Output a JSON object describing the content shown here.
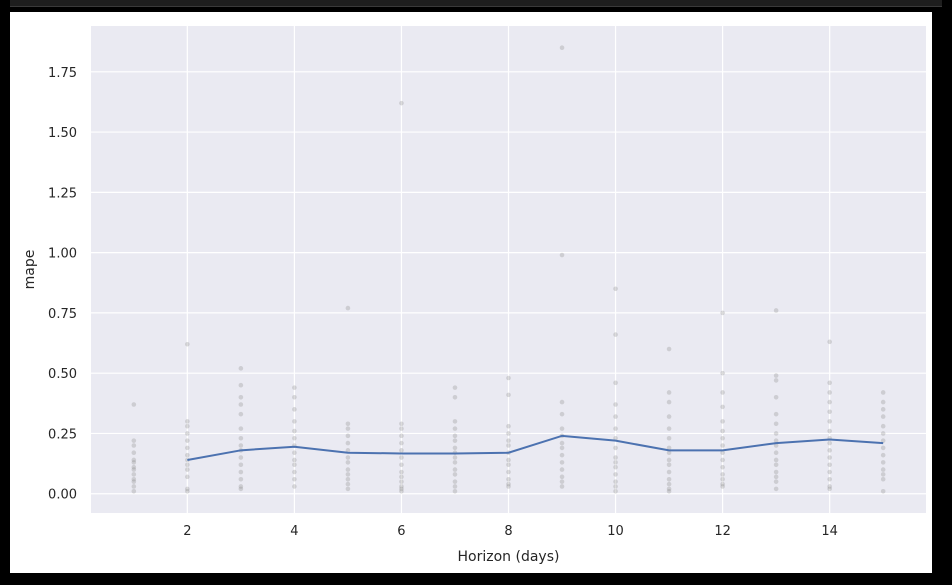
{
  "chart_data": {
    "type": "scatter",
    "title": "",
    "xlabel": "Horizon (days)",
    "ylabel": "mape",
    "xlim": [
      0.2,
      15.8
    ],
    "ylim": [
      -0.08,
      1.94
    ],
    "x_ticks": [
      2,
      4,
      6,
      8,
      10,
      12,
      14
    ],
    "y_ticks": [
      0.0,
      0.25,
      0.5,
      0.75,
      1.0,
      1.25,
      1.5,
      1.75
    ],
    "y_tick_labels": [
      "0.00",
      "0.25",
      "0.50",
      "0.75",
      "1.00",
      "1.25",
      "1.50",
      "1.75"
    ],
    "grid": true,
    "background_color": "#eaeaf2",
    "grid_color": "#ffffff",
    "line_color": "#4c72b0",
    "point_color": "#808080",
    "series": [
      {
        "type": "scatter",
        "points": [
          [
            1,
            0.37
          ],
          [
            1,
            0.22
          ],
          [
            1,
            0.2
          ],
          [
            1,
            0.17
          ],
          [
            1,
            0.14
          ],
          [
            1,
            0.13
          ],
          [
            1,
            0.11
          ],
          [
            1,
            0.1
          ],
          [
            1,
            0.08
          ],
          [
            1,
            0.06
          ],
          [
            1,
            0.05
          ],
          [
            1,
            0.03
          ],
          [
            1,
            0.01
          ],
          [
            2,
            0.62
          ],
          [
            2,
            0.3
          ],
          [
            2,
            0.28
          ],
          [
            2,
            0.25
          ],
          [
            2,
            0.22
          ],
          [
            2,
            0.19
          ],
          [
            2,
            0.16
          ],
          [
            2,
            0.14
          ],
          [
            2,
            0.12
          ],
          [
            2,
            0.1
          ],
          [
            2,
            0.07
          ],
          [
            2,
            0.02
          ],
          [
            2,
            0.01
          ],
          [
            3,
            0.52
          ],
          [
            3,
            0.45
          ],
          [
            3,
            0.4
          ],
          [
            3,
            0.37
          ],
          [
            3,
            0.33
          ],
          [
            3,
            0.27
          ],
          [
            3,
            0.23
          ],
          [
            3,
            0.2
          ],
          [
            3,
            0.18
          ],
          [
            3,
            0.15
          ],
          [
            3,
            0.12
          ],
          [
            3,
            0.09
          ],
          [
            3,
            0.06
          ],
          [
            3,
            0.03
          ],
          [
            3,
            0.02
          ],
          [
            4,
            0.44
          ],
          [
            4,
            0.4
          ],
          [
            4,
            0.35
          ],
          [
            4,
            0.3
          ],
          [
            4,
            0.26
          ],
          [
            4,
            0.23
          ],
          [
            4,
            0.2
          ],
          [
            4,
            0.17
          ],
          [
            4,
            0.14
          ],
          [
            4,
            0.12
          ],
          [
            4,
            0.09
          ],
          [
            4,
            0.06
          ],
          [
            4,
            0.03
          ],
          [
            5,
            0.77
          ],
          [
            5,
            0.29
          ],
          [
            5,
            0.27
          ],
          [
            5,
            0.24
          ],
          [
            5,
            0.21
          ],
          [
            5,
            0.18
          ],
          [
            5,
            0.15
          ],
          [
            5,
            0.13
          ],
          [
            5,
            0.1
          ],
          [
            5,
            0.08
          ],
          [
            5,
            0.06
          ],
          [
            5,
            0.04
          ],
          [
            5,
            0.02
          ],
          [
            6,
            1.62
          ],
          [
            6,
            0.29
          ],
          [
            6,
            0.27
          ],
          [
            6,
            0.24
          ],
          [
            6,
            0.21
          ],
          [
            6,
            0.18
          ],
          [
            6,
            0.15
          ],
          [
            6,
            0.12
          ],
          [
            6,
            0.09
          ],
          [
            6,
            0.07
          ],
          [
            6,
            0.05
          ],
          [
            6,
            0.03
          ],
          [
            6,
            0.02
          ],
          [
            6,
            0.01
          ],
          [
            7,
            0.44
          ],
          [
            7,
            0.4
          ],
          [
            7,
            0.3
          ],
          [
            7,
            0.27
          ],
          [
            7,
            0.24
          ],
          [
            7,
            0.22
          ],
          [
            7,
            0.19
          ],
          [
            7,
            0.17
          ],
          [
            7,
            0.15
          ],
          [
            7,
            0.13
          ],
          [
            7,
            0.1
          ],
          [
            7,
            0.08
          ],
          [
            7,
            0.05
          ],
          [
            7,
            0.03
          ],
          [
            7,
            0.01
          ],
          [
            8,
            0.48
          ],
          [
            8,
            0.41
          ],
          [
            8,
            0.28
          ],
          [
            8,
            0.25
          ],
          [
            8,
            0.22
          ],
          [
            8,
            0.2
          ],
          [
            8,
            0.17
          ],
          [
            8,
            0.14
          ],
          [
            8,
            0.12
          ],
          [
            8,
            0.09
          ],
          [
            8,
            0.06
          ],
          [
            8,
            0.04
          ],
          [
            8,
            0.03
          ],
          [
            9,
            1.85
          ],
          [
            9,
            0.99
          ],
          [
            9,
            0.38
          ],
          [
            9,
            0.33
          ],
          [
            9,
            0.27
          ],
          [
            9,
            0.24
          ],
          [
            9,
            0.21
          ],
          [
            9,
            0.19
          ],
          [
            9,
            0.16
          ],
          [
            9,
            0.13
          ],
          [
            9,
            0.1
          ],
          [
            9,
            0.07
          ],
          [
            9,
            0.05
          ],
          [
            9,
            0.03
          ],
          [
            10,
            0.85
          ],
          [
            10,
            0.66
          ],
          [
            10,
            0.46
          ],
          [
            10,
            0.37
          ],
          [
            10,
            0.32
          ],
          [
            10,
            0.27
          ],
          [
            10,
            0.23
          ],
          [
            10,
            0.19
          ],
          [
            10,
            0.15
          ],
          [
            10,
            0.13
          ],
          [
            10,
            0.11
          ],
          [
            10,
            0.08
          ],
          [
            10,
            0.05
          ],
          [
            10,
            0.03
          ],
          [
            10,
            0.01
          ],
          [
            11,
            0.6
          ],
          [
            11,
            0.42
          ],
          [
            11,
            0.38
          ],
          [
            11,
            0.32
          ],
          [
            11,
            0.27
          ],
          [
            11,
            0.23
          ],
          [
            11,
            0.19
          ],
          [
            11,
            0.17
          ],
          [
            11,
            0.14
          ],
          [
            11,
            0.12
          ],
          [
            11,
            0.09
          ],
          [
            11,
            0.06
          ],
          [
            11,
            0.04
          ],
          [
            11,
            0.02
          ],
          [
            11,
            0.01
          ],
          [
            12,
            0.75
          ],
          [
            12,
            0.5
          ],
          [
            12,
            0.42
          ],
          [
            12,
            0.36
          ],
          [
            12,
            0.3
          ],
          [
            12,
            0.26
          ],
          [
            12,
            0.23
          ],
          [
            12,
            0.2
          ],
          [
            12,
            0.17
          ],
          [
            12,
            0.14
          ],
          [
            12,
            0.11
          ],
          [
            12,
            0.08
          ],
          [
            12,
            0.06
          ],
          [
            12,
            0.04
          ],
          [
            12,
            0.03
          ],
          [
            13,
            0.76
          ],
          [
            13,
            0.49
          ],
          [
            13,
            0.47
          ],
          [
            13,
            0.4
          ],
          [
            13,
            0.33
          ],
          [
            13,
            0.29
          ],
          [
            13,
            0.25
          ],
          [
            13,
            0.22
          ],
          [
            13,
            0.2
          ],
          [
            13,
            0.17
          ],
          [
            13,
            0.14
          ],
          [
            13,
            0.12
          ],
          [
            13,
            0.09
          ],
          [
            13,
            0.07
          ],
          [
            13,
            0.05
          ],
          [
            13,
            0.02
          ],
          [
            14,
            0.63
          ],
          [
            14,
            0.46
          ],
          [
            14,
            0.42
          ],
          [
            14,
            0.38
          ],
          [
            14,
            0.34
          ],
          [
            14,
            0.3
          ],
          [
            14,
            0.26
          ],
          [
            14,
            0.23
          ],
          [
            14,
            0.21
          ],
          [
            14,
            0.18
          ],
          [
            14,
            0.15
          ],
          [
            14,
            0.12
          ],
          [
            14,
            0.09
          ],
          [
            14,
            0.06
          ],
          [
            14,
            0.03
          ],
          [
            14,
            0.02
          ],
          [
            15,
            0.42
          ],
          [
            15,
            0.38
          ],
          [
            15,
            0.35
          ],
          [
            15,
            0.32
          ],
          [
            15,
            0.28
          ],
          [
            15,
            0.25
          ],
          [
            15,
            0.22
          ],
          [
            15,
            0.19
          ],
          [
            15,
            0.16
          ],
          [
            15,
            0.13
          ],
          [
            15,
            0.1
          ],
          [
            15,
            0.08
          ],
          [
            15,
            0.06
          ],
          [
            15,
            0.01
          ]
        ]
      },
      {
        "type": "line",
        "x": [
          2,
          3,
          4,
          5,
          6,
          7,
          8,
          9,
          10,
          11,
          12,
          13,
          14,
          15
        ],
        "y": [
          0.14,
          0.18,
          0.195,
          0.17,
          0.167,
          0.167,
          0.17,
          0.24,
          0.22,
          0.18,
          0.18,
          0.21,
          0.225,
          0.21
        ]
      }
    ]
  }
}
